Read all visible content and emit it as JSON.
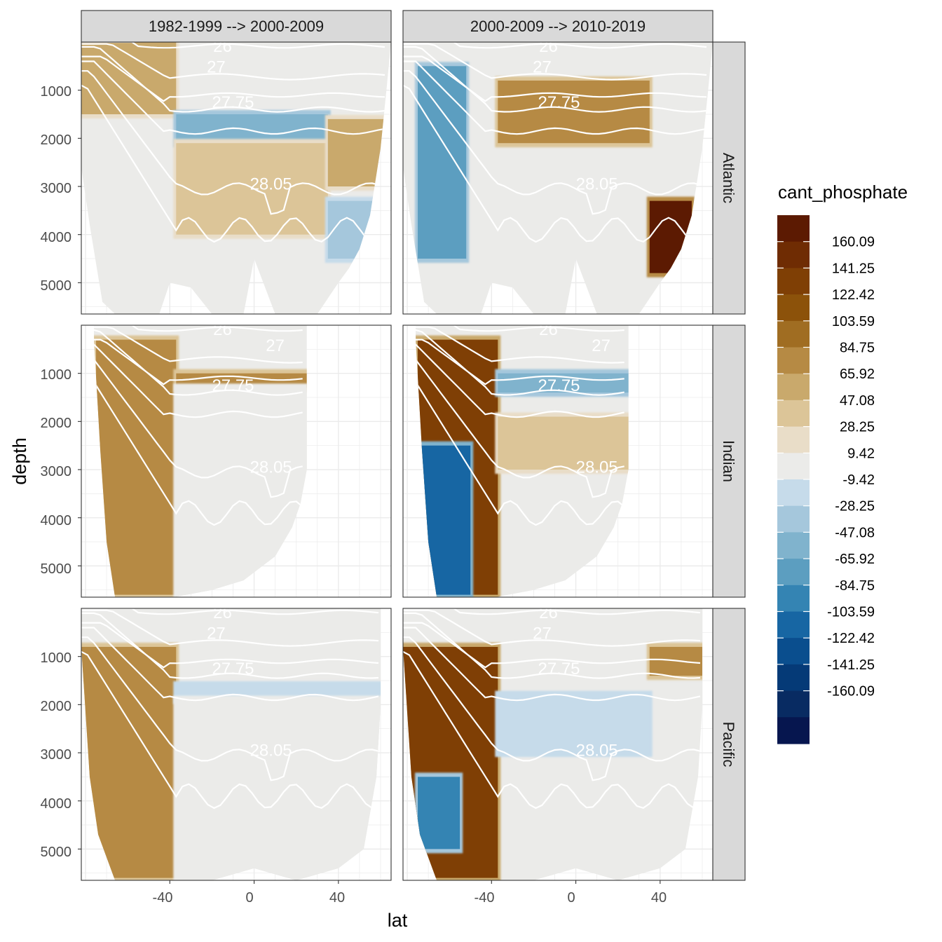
{
  "chart_data": {
    "type": "heatmap",
    "description_free": true,
    "facet_columns": [
      "1982-1999 --> 2000-2009",
      "2000-2009 --> 2010-2019"
    ],
    "facet_rows": [
      "Atlantic",
      "Indian",
      "Pacific"
    ],
    "xlabel": "lat",
    "ylabel": "depth",
    "x_ticks": [
      "-40",
      "0",
      "40"
    ],
    "x_tick_values": [
      -40,
      0,
      40
    ],
    "y_ticks": [
      "1000",
      "2000",
      "3000",
      "4000",
      "5000"
    ],
    "y_tick_values": [
      1000,
      2000,
      3000,
      4000,
      5000
    ],
    "xlim": [
      -82,
      65
    ],
    "ylim": [
      5650,
      0
    ],
    "y_reversed": true,
    "grid": true,
    "legend": {
      "title": "cant_phosphate",
      "placement": "right",
      "labels": [
        "160.09",
        "141.25",
        "122.42",
        "103.59",
        "84.75",
        "65.92",
        "47.08",
        "28.25",
        "9.42",
        "-9.42",
        "-28.25",
        "-47.08",
        "-65.92",
        "-84.75",
        "-103.59",
        "-122.42",
        "-141.25",
        "-160.09"
      ],
      "colors": [
        "#5c1a02",
        "#6f2c03",
        "#7f3f05",
        "#8c520a",
        "#a06d22",
        "#b68a44",
        "#c9a96c",
        "#dcc598",
        "#e9ddc8",
        "#ebebe9",
        "#c6dbea",
        "#a5c7dc",
        "#80b3cd",
        "#5c9ec0",
        "#3484b3",
        "#1766a3",
        "#0a4e8e",
        "#053a77",
        "#082b62",
        "#06164f"
      ]
    },
    "isopycnal_labels": [
      "26",
      "27",
      "27.75",
      "28.05"
    ],
    "panels": [
      {
        "column": "1982-1999 --> 2000-2009",
        "row": "Atlantic",
        "zones": [
          {
            "lat": [
              -82,
              -37
            ],
            "depth": [
              0,
              1500
            ],
            "value": 47.08
          },
          {
            "lat": [
              -37,
              35
            ],
            "depth": [
              1500,
              2100
            ],
            "value": -65.92
          },
          {
            "lat": [
              -37,
              35
            ],
            "depth": [
              2100,
              4000
            ],
            "value": 28.25
          },
          {
            "lat": [
              35,
              65
            ],
            "depth": [
              3300,
              4500
            ],
            "value": -47.08
          },
          {
            "lat": [
              35,
              65
            ],
            "depth": [
              1600,
              3000
            ],
            "value": 47.08
          }
        ]
      },
      {
        "column": "2000-2009 --> 2010-2019",
        "row": "Atlantic",
        "zones": [
          {
            "lat": [
              -75,
              -52
            ],
            "depth": [
              500,
              4500
            ],
            "value": -84.75
          },
          {
            "lat": [
              -37,
              35
            ],
            "depth": [
              800,
              2100
            ],
            "value": 65.92
          },
          {
            "lat": [
              35,
              55
            ],
            "depth": [
              3300,
              4800
            ],
            "value": 160.09
          }
        ]
      },
      {
        "column": "1982-1999 --> 2000-2009",
        "row": "Indian",
        "zones": [
          {
            "lat": [
              -75,
              -37
            ],
            "depth": [
              300,
              5600
            ],
            "value": 65.92
          },
          {
            "lat": [
              -37,
              25
            ],
            "depth": [
              1000,
              1300
            ],
            "value": 65.92
          },
          {
            "lat": [
              -37,
              25
            ],
            "depth": [
              1300,
              5600
            ],
            "value": 0
          }
        ]
      },
      {
        "column": "2000-2009 --> 2010-2019",
        "row": "Indian",
        "zones": [
          {
            "lat": [
              -75,
              -37
            ],
            "depth": [
              300,
              5600
            ],
            "value": 122.42
          },
          {
            "lat": [
              -75,
              -50
            ],
            "depth": [
              2500,
              5600
            ],
            "value": -122.42
          },
          {
            "lat": [
              -37,
              25
            ],
            "depth": [
              1000,
              1400
            ],
            "value": -65.92
          },
          {
            "lat": [
              -37,
              25
            ],
            "depth": [
              1900,
              3000
            ],
            "value": 28.25
          }
        ]
      },
      {
        "column": "1982-1999 --> 2000-2009",
        "row": "Pacific",
        "zones": [
          {
            "lat": [
              -82,
              -37
            ],
            "depth": [
              800,
              5600
            ],
            "value": 65.92
          },
          {
            "lat": [
              -37,
              60
            ],
            "depth": [
              1600,
              1900
            ],
            "value": -28.25
          },
          {
            "lat": [
              -37,
              60
            ],
            "depth": [
              1900,
              5600
            ],
            "value": 0
          }
        ]
      },
      {
        "column": "2000-2009 --> 2010-2019",
        "row": "Pacific",
        "zones": [
          {
            "lat": [
              -82,
              -37
            ],
            "depth": [
              800,
              5600
            ],
            "value": 122.42
          },
          {
            "lat": [
              -75,
              -55
            ],
            "depth": [
              3500,
              5000
            ],
            "value": -103.59
          },
          {
            "lat": [
              -37,
              35
            ],
            "depth": [
              1800,
              3000
            ],
            "value": -28.25
          },
          {
            "lat": [
              35,
              62
            ],
            "depth": [
              800,
              1400
            ],
            "value": 65.92
          }
        ]
      }
    ]
  }
}
